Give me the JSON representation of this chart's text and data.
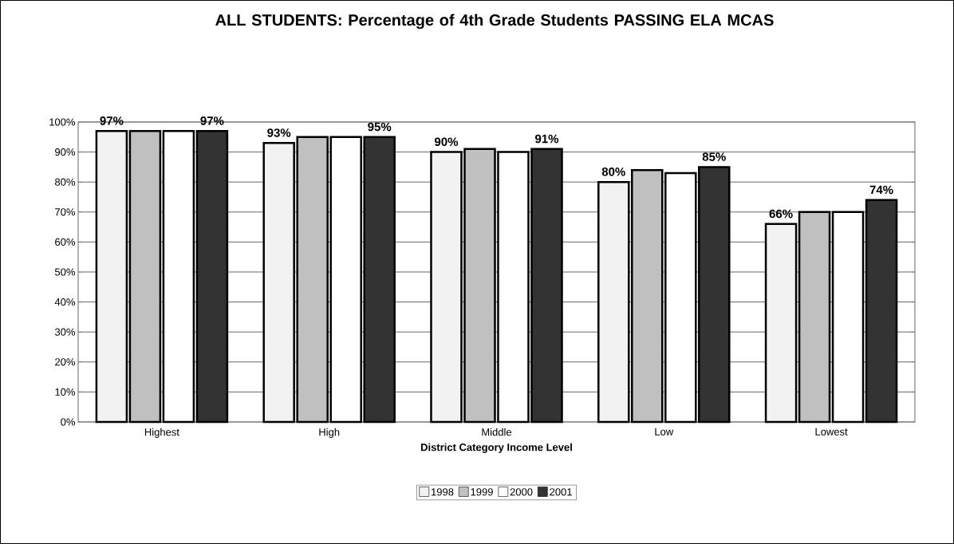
{
  "chart_data": {
    "type": "bar",
    "title": "ALL STUDENTS: Percentage of 4th Grade Students PASSING ELA MCAS",
    "xlabel": "District Category Income Level",
    "categories": [
      "Highest",
      "High",
      "Middle",
      "Low",
      "Lowest"
    ],
    "series": [
      {
        "name": "1998",
        "color": "#f2f2f2",
        "values": [
          97,
          93,
          90,
          80,
          66
        ],
        "value_labels": [
          "97%",
          "93%",
          "90%",
          "80%",
          "66%"
        ]
      },
      {
        "name": "1999",
        "color": "#c0c0c0",
        "values": [
          97,
          95,
          91,
          84,
          70
        ]
      },
      {
        "name": "2000",
        "color": "#ffffff",
        "values": [
          97,
          95,
          90,
          83,
          70
        ]
      },
      {
        "name": "2001",
        "color": "#333333",
        "values": [
          97,
          95,
          91,
          85,
          74
        ],
        "value_labels": [
          "97%",
          "95%",
          "91%",
          "85%",
          "74%"
        ]
      }
    ],
    "ylim": [
      0,
      100
    ],
    "yticks": [
      {
        "value": 0,
        "label": "0%"
      },
      {
        "value": 10,
        "label": "10%"
      },
      {
        "value": 20,
        "label": "20%"
      },
      {
        "value": 30,
        "label": "30%"
      },
      {
        "value": 40,
        "label": "40%"
      },
      {
        "value": 50,
        "label": "50%"
      },
      {
        "value": 60,
        "label": "60%"
      },
      {
        "value": 70,
        "label": "70%"
      },
      {
        "value": 80,
        "label": "80%"
      },
      {
        "value": 90,
        "label": "90%"
      },
      {
        "value": 100,
        "label": "100%"
      }
    ],
    "grid": "y",
    "legend": "bottom"
  }
}
